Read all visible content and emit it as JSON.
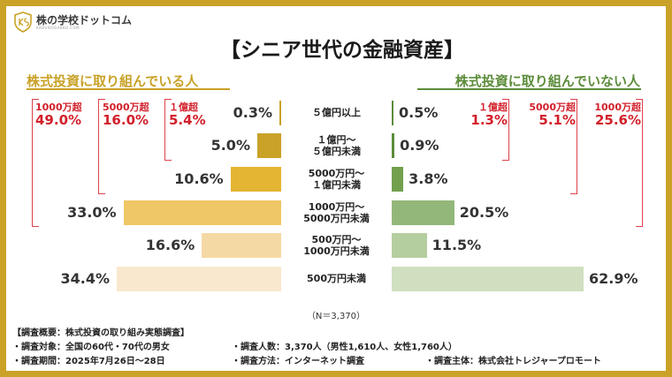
{
  "logo": {
    "name": "株の学校ドットコム",
    "sub": "KABUNOGAKKO.COM"
  },
  "colors": {
    "frame": "#c9a227",
    "left_shades": [
      "#c9a227",
      "#c9a227",
      "#e3b533",
      "#f0c766",
      "#f5d9a4",
      "#f9e8cd"
    ],
    "right_shades": [
      "#5c8c3a",
      "#5c8c3a",
      "#72a04e",
      "#93b77a",
      "#b5ce9f",
      "#cfdfbf"
    ],
    "accent_red": "#d21f2a"
  },
  "chart_data": {
    "type": "bar",
    "title": "【シニア世代の金融資産】",
    "orientation": "horizontal-butterfly",
    "categories": [
      [
        "５億円以上"
      ],
      [
        "１億円～",
        "５億円未満"
      ],
      [
        "5000万円～",
        "１億円未満"
      ],
      [
        "1000万円～",
        "5000万円未満"
      ],
      [
        "500万円～",
        "1000万円未満"
      ],
      [
        "500万円未満"
      ]
    ],
    "series": [
      {
        "name": "株式投資に取り組んでいる人",
        "values": [
          0.3,
          5.0,
          10.6,
          33.0,
          16.6,
          34.4
        ],
        "labels": [
          "0.3%",
          "5.0%",
          "10.6%",
          "33.0%",
          "16.6%",
          "34.4%"
        ],
        "cumulative": [
          {
            "label": "1000万超",
            "value": "49.0%"
          },
          {
            "label": "5000万超",
            "value": "16.0%"
          },
          {
            "label": "１億超",
            "value": "5.4%"
          }
        ]
      },
      {
        "name": "株式投資に取り組んでいない人",
        "values": [
          0.5,
          0.9,
          3.8,
          20.5,
          11.5,
          62.9
        ],
        "labels": [
          "0.5%",
          "0.9%",
          "3.8%",
          "20.5%",
          "11.5%",
          "62.9%"
        ],
        "cumulative": [
          {
            "label": "１億超",
            "value": "1.3%"
          },
          {
            "label": "5000万超",
            "value": "5.1%"
          },
          {
            "label": "1000万超",
            "value": "25.6%"
          }
        ]
      }
    ],
    "note": "（N＝3,370）"
  },
  "footer": {
    "heading": "【調査概要：株式投資の取り組み実態調査】",
    "target": "・調査対象：全国の60代・70代の男女",
    "count": "・調査人数：3,370人（男性1,610人、女性1,760人）",
    "period": "・調査期間：2025年7月26日～28日",
    "method": "・調査方法：インターネット調査",
    "sponsor": "・調査主体：株式会社トレジャープロモート"
  }
}
